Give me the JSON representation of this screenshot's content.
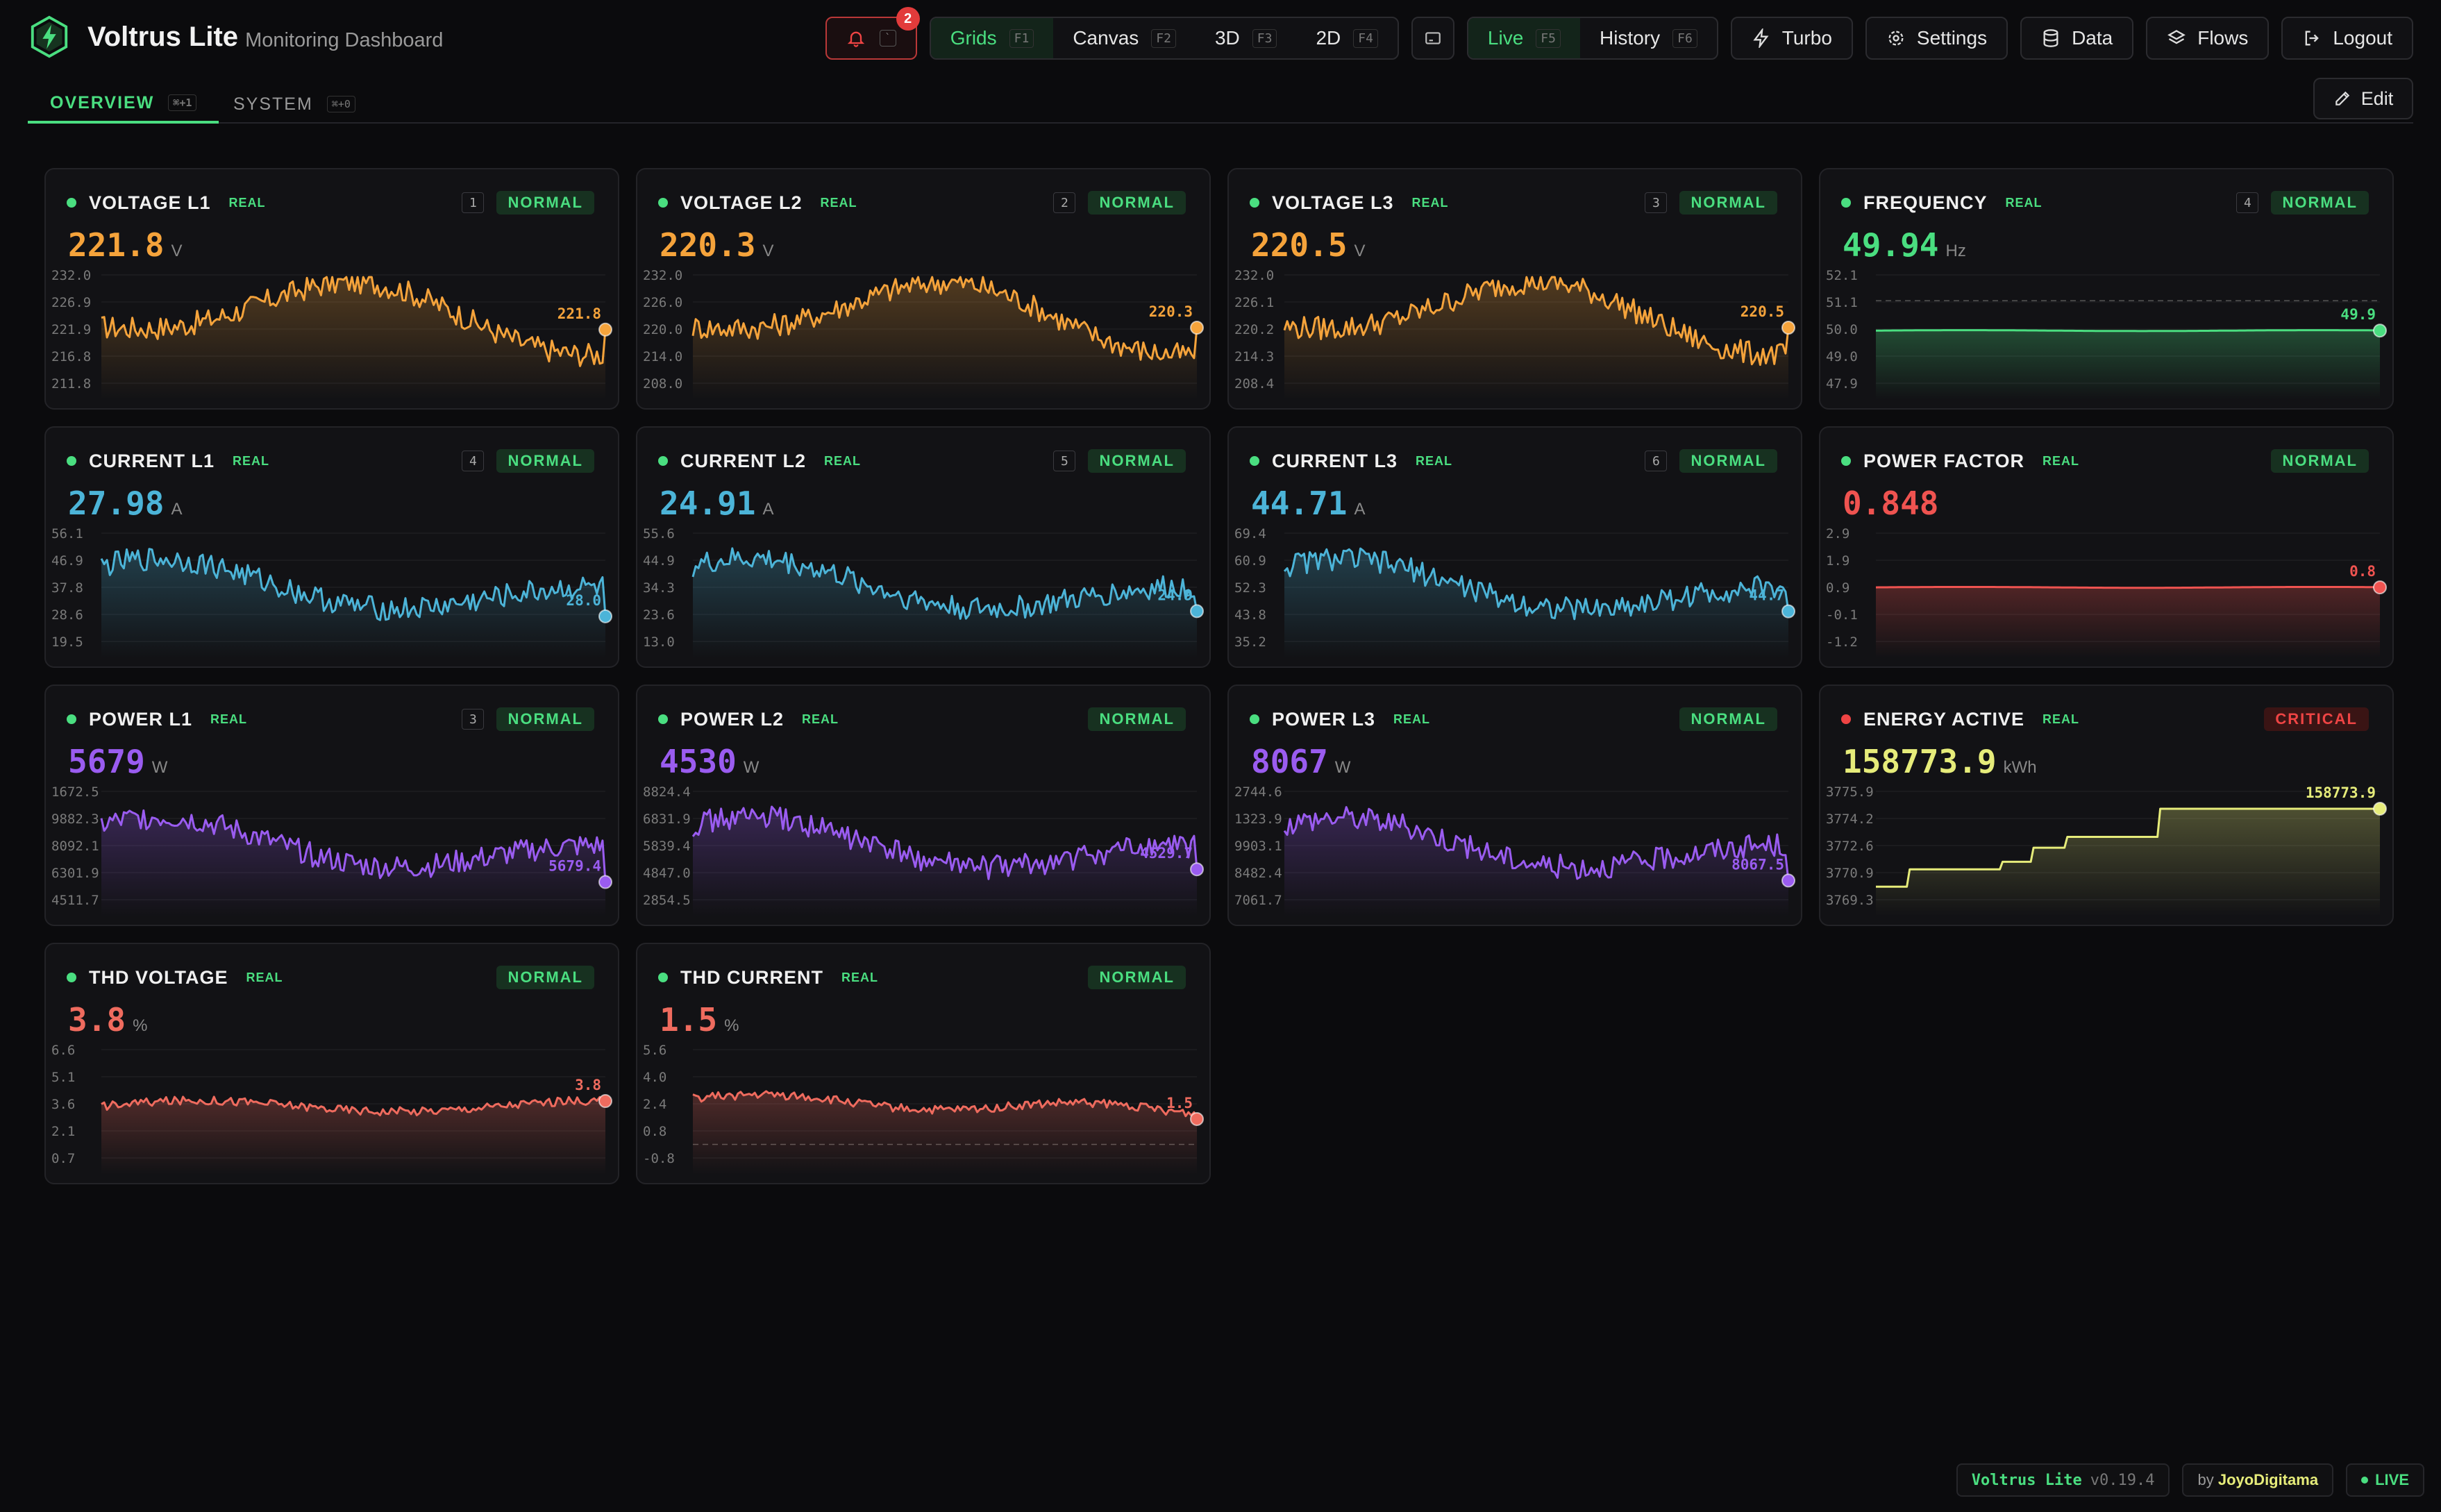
{
  "brand": {
    "title": "Voltrus Lite",
    "subtitle": "Monitoring Dashboard"
  },
  "toolbar": {
    "alert_count": "2",
    "alert_key": "`",
    "views": [
      {
        "label": "Grids",
        "key": "F1",
        "active": true
      },
      {
        "label": "Canvas",
        "key": "F2",
        "active": false
      },
      {
        "label": "3D",
        "key": "F3",
        "active": false
      },
      {
        "label": "2D",
        "key": "F4",
        "active": false
      }
    ],
    "modes": [
      {
        "label": "Live",
        "key": "F5",
        "active": true
      },
      {
        "label": "History",
        "key": "F6",
        "active": false
      }
    ],
    "turbo": "Turbo",
    "settings": "Settings",
    "data": "Data",
    "flows": "Flows",
    "logout": "Logout"
  },
  "tabs": [
    {
      "label": "OVERVIEW",
      "key": "⌘+1",
      "active": true
    },
    {
      "label": "SYSTEM",
      "key": "⌘+0",
      "active": false
    }
  ],
  "edit_label": "Edit",
  "colors": {
    "orange": "#f5a33b",
    "green": "#4ade80",
    "cyan": "#4cb4d8",
    "red": "#ef5350",
    "purple": "#9a5cf0",
    "yellow": "#e6ec7a",
    "salmon": "#ef6b5e"
  },
  "cards": [
    {
      "name": "VOLTAGE L1",
      "tag": "REAL",
      "index": "1",
      "status": "NORMAL",
      "value": "221.8",
      "unit": "V",
      "color": "#f5a33b",
      "last_label": "221.8",
      "yticks": [
        "232.0",
        "226.9",
        "221.9",
        "216.8",
        "211.8"
      ],
      "ymin": 211.8,
      "ymax": 232.0,
      "last": 221.8,
      "profile": "volt"
    },
    {
      "name": "VOLTAGE L2",
      "tag": "REAL",
      "index": "2",
      "status": "NORMAL",
      "value": "220.3",
      "unit": "V",
      "color": "#f5a33b",
      "last_label": "220.3",
      "yticks": [
        "232.0",
        "226.0",
        "220.0",
        "214.0",
        "208.0"
      ],
      "ymin": 208.0,
      "ymax": 232.0,
      "last": 220.3,
      "profile": "volt"
    },
    {
      "name": "VOLTAGE L3",
      "tag": "REAL",
      "index": "3",
      "status": "NORMAL",
      "value": "220.5",
      "unit": "V",
      "color": "#f5a33b",
      "last_label": "220.5",
      "yticks": [
        "232.0",
        "226.1",
        "220.2",
        "214.3",
        "208.4"
      ],
      "ymin": 208.4,
      "ymax": 232.0,
      "last": 220.5,
      "profile": "volt"
    },
    {
      "name": "FREQUENCY",
      "tag": "REAL",
      "index": "4",
      "status": "NORMAL",
      "value": "49.94",
      "unit": "Hz",
      "color": "#4ade80",
      "last_label": "49.9",
      "yticks": [
        "52.1",
        "51.1",
        "50.0",
        "49.0",
        "47.9"
      ],
      "ymin": 47.9,
      "ymax": 52.1,
      "last": 49.94,
      "profile": "flat",
      "ref": 51.1
    },
    {
      "name": "CURRENT L1",
      "tag": "REAL",
      "index": "4",
      "status": "NORMAL",
      "value": "27.98",
      "unit": "A",
      "color": "#4cb4d8",
      "last_label": "28.0",
      "yticks": [
        "56.1",
        "46.9",
        "37.8",
        "28.6",
        "19.5"
      ],
      "ymin": 19.5,
      "ymax": 56.1,
      "last": 27.98,
      "profile": "curr"
    },
    {
      "name": "CURRENT L2",
      "tag": "REAL",
      "index": "5",
      "status": "NORMAL",
      "value": "24.91",
      "unit": "A",
      "color": "#4cb4d8",
      "last_label": "24.9",
      "yticks": [
        "55.6",
        "44.9",
        "34.3",
        "23.6",
        "13.0"
      ],
      "ymin": 13.0,
      "ymax": 55.6,
      "last": 24.91,
      "profile": "curr"
    },
    {
      "name": "CURRENT L3",
      "tag": "REAL",
      "index": "6",
      "status": "NORMAL",
      "value": "44.71",
      "unit": "A",
      "color": "#4cb4d8",
      "last_label": "44.7",
      "yticks": [
        "69.4",
        "60.9",
        "52.3",
        "43.8",
        "35.2"
      ],
      "ymin": 35.2,
      "ymax": 69.4,
      "last": 44.71,
      "profile": "curr"
    },
    {
      "name": "POWER FACTOR",
      "tag": "REAL",
      "index": "",
      "status": "NORMAL",
      "value": "0.848",
      "unit": "",
      "color": "#ef5350",
      "last_label": "0.8",
      "yticks": [
        "2.9",
        "1.9",
        "0.9",
        "-0.1",
        "-1.2"
      ],
      "ymin": -1.2,
      "ymax": 2.9,
      "last": 0.848,
      "profile": "flat"
    },
    {
      "name": "POWER L1",
      "tag": "REAL",
      "index": "3",
      "status": "NORMAL",
      "value": "5679",
      "unit": "W",
      "color": "#9a5cf0",
      "last_label": "5679.4",
      "yticks": [
        "1672.5",
        "9882.3",
        "8092.1",
        "6301.9",
        "4511.7"
      ],
      "ymin": 4511.7,
      "ymax": 11672.5,
      "last": 5679.4,
      "profile": "curr"
    },
    {
      "name": "POWER L2",
      "tag": "REAL",
      "index": "",
      "status": "NORMAL",
      "value": "4530",
      "unit": "W",
      "color": "#9a5cf0",
      "last_label": "4529.7",
      "yticks": [
        "8824.4",
        "6831.9",
        "5839.4",
        "4847.0",
        "2854.5"
      ],
      "ymin": 2854.5,
      "ymax": 8824.4,
      "last": 4529.7,
      "profile": "curr"
    },
    {
      "name": "POWER L3",
      "tag": "REAL",
      "index": "",
      "status": "NORMAL",
      "value": "8067",
      "unit": "W",
      "color": "#9a5cf0",
      "last_label": "8067.5",
      "yticks": [
        "2744.6",
        "1323.9",
        "9903.1",
        "8482.4",
        "7061.7"
      ],
      "ymin": 7061.7,
      "ymax": 12744.6,
      "last": 8067.5,
      "profile": "curr"
    },
    {
      "name": "ENERGY ACTIVE",
      "tag": "REAL",
      "index": "",
      "status": "CRITICAL",
      "value": "158773.9",
      "unit": "kWh",
      "color": "#e6ec7a",
      "last_label": "158773.9",
      "yticks": [
        "3775.9",
        "3774.2",
        "3772.6",
        "3770.9",
        "3769.3"
      ],
      "ymin": 0,
      "ymax": 1,
      "last": 0.88,
      "profile": "step",
      "critical": true
    },
    {
      "name": "THD VOLTAGE",
      "tag": "REAL",
      "index": "",
      "status": "NORMAL",
      "value": "3.8",
      "unit": "%",
      "color": "#ef6b5e",
      "last_label": "3.8",
      "yticks": [
        "6.6",
        "5.1",
        "3.6",
        "2.1",
        "0.7"
      ],
      "ymin": 0.7,
      "ymax": 6.6,
      "last": 3.8,
      "profile": "thdv"
    },
    {
      "name": "THD CURRENT",
      "tag": "REAL",
      "index": "",
      "status": "NORMAL",
      "value": "1.5",
      "unit": "%",
      "color": "#ef6b5e",
      "last_label": "1.5",
      "yticks": [
        "5.6",
        "4.0",
        "2.4",
        "0.8",
        "-0.8"
      ],
      "ymin": -0.8,
      "ymax": 5.6,
      "last": 1.5,
      "profile": "thdc",
      "ref": 0
    }
  ],
  "footer": {
    "app": "Voltrus Lite",
    "version": "v0.19.4",
    "by": "by",
    "author": "JoyoDigitama",
    "live": "LIVE"
  }
}
